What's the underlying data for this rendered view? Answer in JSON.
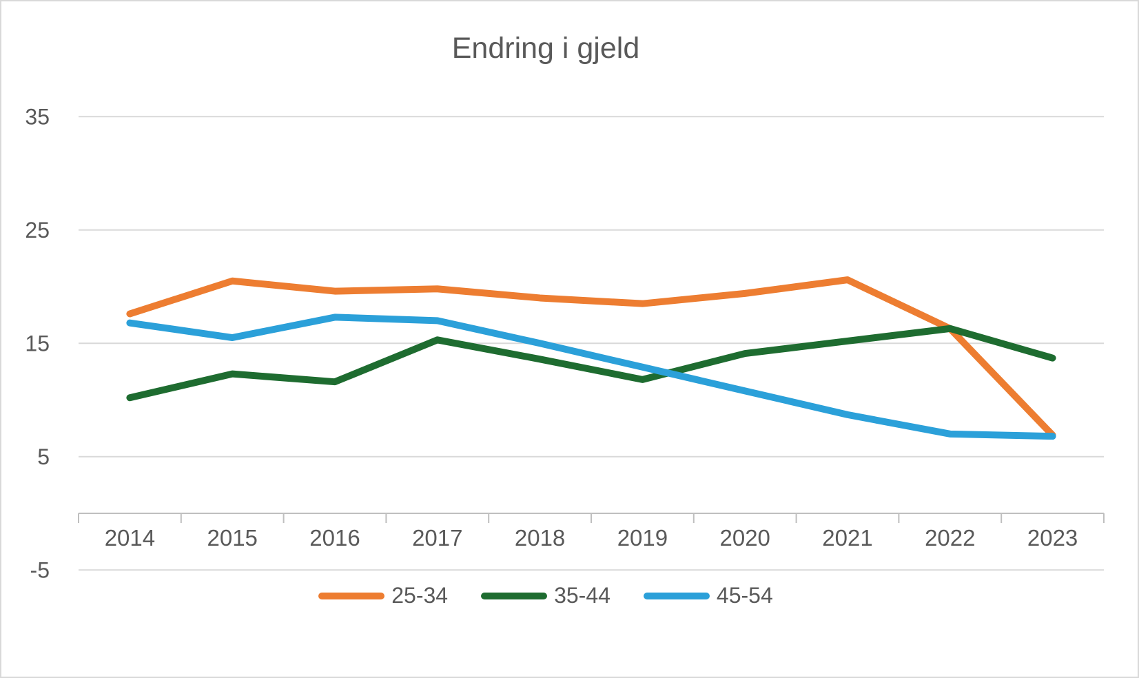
{
  "chart_data": {
    "type": "line",
    "title": "Endring i gjeld",
    "categories": [
      "2014",
      "2015",
      "2016",
      "2017",
      "2018",
      "2019",
      "2020",
      "2021",
      "2022",
      "2023"
    ],
    "series": [
      {
        "name": "25-34",
        "color": "#ED7D31",
        "values": [
          17.6,
          20.5,
          19.6,
          19.8,
          19.0,
          18.5,
          19.4,
          20.6,
          16.3,
          6.9
        ]
      },
      {
        "name": "35-44",
        "color": "#1E6C30",
        "values": [
          10.2,
          12.3,
          11.6,
          15.3,
          13.6,
          11.8,
          14.1,
          15.2,
          16.3,
          13.7
        ]
      },
      {
        "name": "45-54",
        "color": "#2BA0D9",
        "values": [
          16.8,
          15.5,
          17.3,
          17.0,
          15.0,
          12.9,
          10.8,
          8.7,
          7.0,
          6.8
        ]
      }
    ],
    "xlabel": "",
    "ylabel": "",
    "ylim": [
      -5,
      35
    ],
    "yticks": [
      35,
      25,
      15,
      5,
      -5
    ],
    "axis_cross_value": 0,
    "grid": true,
    "legend_position": "bottom"
  },
  "style": {
    "text_color": "#595959",
    "gridline_color": "#d9d9d9",
    "axis_color": "#bfbfbf",
    "background": "#ffffff",
    "line_width": 10
  }
}
